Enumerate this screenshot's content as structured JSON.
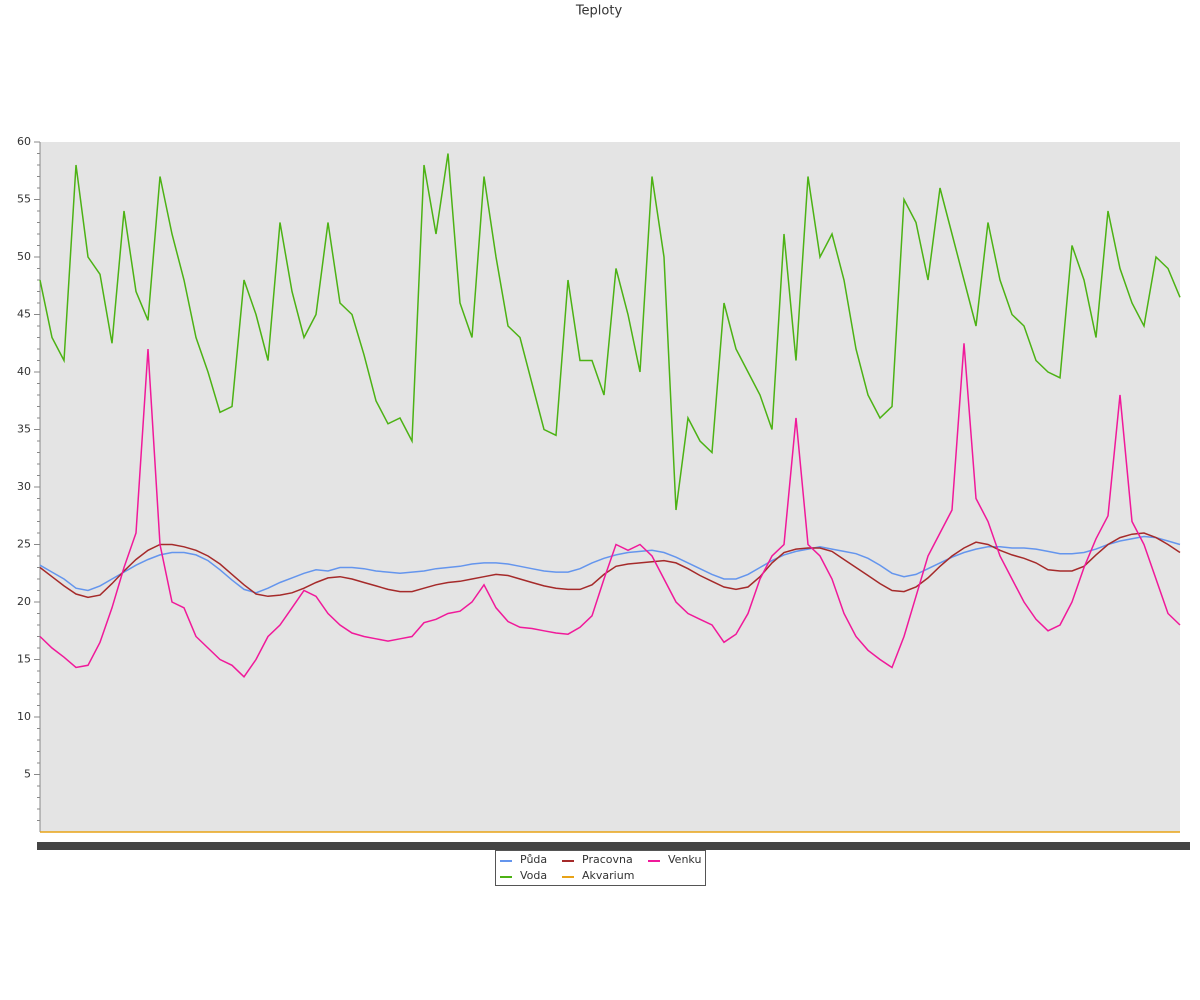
{
  "chart_data": {
    "type": "line",
    "title": "Teploty",
    "categories": [
      null,
      null,
      null,
      null,
      null,
      null,
      null,
      null,
      null,
      null,
      null,
      null,
      null,
      null,
      null,
      null,
      null,
      null,
      null,
      null,
      null,
      null,
      null,
      null,
      null,
      null,
      null,
      null,
      null,
      null,
      null,
      null,
      null,
      null,
      null,
      null,
      null,
      null,
      null,
      null,
      null,
      null,
      null,
      null,
      null,
      null,
      null,
      null,
      null,
      null,
      null,
      null,
      null,
      null,
      null,
      null,
      null,
      null,
      null,
      null,
      null,
      null,
      null,
      null,
      null,
      null,
      null,
      null,
      null,
      null,
      null,
      null,
      null,
      null,
      null,
      null,
      null,
      null,
      null,
      null,
      null,
      null,
      null,
      null,
      null,
      null,
      null,
      null,
      null,
      null,
      null,
      null,
      null,
      null,
      null,
      null
    ],
    "ylim": [
      0,
      60
    ],
    "yticks": [
      5,
      10,
      15,
      20,
      25,
      30,
      35,
      40,
      45,
      50,
      55,
      60
    ],
    "series": [
      {
        "name": "Půda",
        "color": "#6495ed",
        "values": [
          23.2,
          22.6,
          22,
          21.2,
          21,
          21.4,
          22,
          22.6,
          23.2,
          23.7,
          24.1,
          24.3,
          24.3,
          24.1,
          23.6,
          22.8,
          21.9,
          21.1,
          20.8,
          21.2,
          21.7,
          22.1,
          22.5,
          22.8,
          22.7,
          23,
          23,
          22.9,
          22.7,
          22.6,
          22.5,
          22.6,
          22.7,
          22.9,
          23,
          23.1,
          23.3,
          23.4,
          23.4,
          23.3,
          23.1,
          22.9,
          22.7,
          22.6,
          22.6,
          22.9,
          23.4,
          23.8,
          24.1,
          24.3,
          24.4,
          24.5,
          24.3,
          23.9,
          23.4,
          22.9,
          22.4,
          22,
          22,
          22.4,
          23,
          23.6,
          24.1,
          24.4,
          24.6,
          24.8,
          24.6,
          24.4,
          24.2,
          23.8,
          23.2,
          22.5,
          22.2,
          22.4,
          22.9,
          23.4,
          23.9,
          24.3,
          24.6,
          24.8,
          24.8,
          24.7,
          24.7,
          24.6,
          24.4,
          24.2,
          24.2,
          24.3,
          24.6,
          25,
          25.3,
          25.5,
          25.7,
          25.6,
          25.3,
          25
        ]
      },
      {
        "name": "Pracovna",
        "color": "#a52a2a",
        "values": [
          23,
          22.2,
          21.4,
          20.7,
          20.4,
          20.6,
          21.6,
          22.7,
          23.7,
          24.5,
          25,
          25,
          24.8,
          24.5,
          24,
          23.3,
          22.4,
          21.5,
          20.7,
          20.5,
          20.6,
          20.8,
          21.2,
          21.7,
          22.1,
          22.2,
          22,
          21.7,
          21.4,
          21.1,
          20.9,
          20.9,
          21.2,
          21.5,
          21.7,
          21.8,
          22,
          22.2,
          22.4,
          22.3,
          22,
          21.7,
          21.4,
          21.2,
          21.1,
          21.1,
          21.5,
          22.4,
          23.1,
          23.3,
          23.4,
          23.5,
          23.6,
          23.4,
          22.9,
          22.3,
          21.8,
          21.3,
          21.1,
          21.3,
          22.2,
          23.4,
          24.3,
          24.6,
          24.7,
          24.7,
          24.4,
          23.7,
          23,
          22.3,
          21.6,
          21,
          20.9,
          21.3,
          22.1,
          23.1,
          24,
          24.7,
          25.2,
          25,
          24.5,
          24.1,
          23.8,
          23.4,
          22.8,
          22.7,
          22.7,
          23.1,
          24.1,
          25,
          25.6,
          25.9,
          26,
          25.6,
          25,
          24.3
        ]
      },
      {
        "name": "Venku",
        "color": "#f0199a",
        "values": [
          17,
          16,
          15.2,
          14.3,
          14.5,
          16.5,
          19.5,
          23,
          26,
          42,
          25,
          20,
          19.5,
          17,
          16,
          15,
          14.5,
          13.5,
          15,
          17,
          18,
          19.5,
          21,
          20.5,
          19,
          18,
          17.3,
          17,
          16.8,
          16.6,
          16.8,
          17,
          18.2,
          18.5,
          19,
          19.2,
          20,
          21.5,
          19.5,
          18.3,
          17.8,
          17.7,
          17.5,
          17.3,
          17.2,
          17.8,
          18.8,
          22,
          25,
          24.5,
          25,
          24,
          22,
          20,
          19,
          18.5,
          18,
          16.5,
          17.2,
          19,
          22,
          24,
          25,
          36,
          25,
          24,
          22,
          19,
          17,
          15.8,
          15,
          14.3,
          17,
          20.5,
          24,
          26,
          28,
          42.5,
          29,
          27,
          24,
          22,
          20,
          18.5,
          17.5,
          18,
          20,
          23,
          25.5,
          27.5,
          38,
          27,
          25,
          22,
          19,
          18
        ]
      },
      {
        "name": "Voda",
        "color": "#4cb214",
        "values": [
          48,
          43,
          41,
          58,
          50,
          48.5,
          42.5,
          54,
          47,
          44.5,
          57,
          52,
          48,
          43,
          40,
          36.5,
          37,
          48,
          45,
          41,
          53,
          47,
          43,
          45,
          53,
          46,
          45,
          41.5,
          37.5,
          35.5,
          36,
          34,
          58,
          52,
          59,
          46,
          43,
          57,
          50,
          44,
          43,
          39,
          35,
          34.5,
          48,
          41,
          41,
          38,
          49,
          45,
          40,
          57,
          50,
          28,
          36,
          34,
          33,
          46,
          42,
          40,
          38,
          35,
          52,
          41,
          57,
          50,
          52,
          48,
          42,
          38,
          36,
          37,
          55,
          53,
          48,
          56,
          52,
          48,
          44,
          53,
          48,
          45,
          44,
          41,
          40,
          39.5,
          51,
          48,
          43,
          54,
          49,
          46,
          44,
          50,
          49,
          46.5
        ]
      },
      {
        "name": "Akvarium",
        "color": "#e8a317",
        "values": [
          0,
          0,
          0,
          0,
          0,
          0,
          0,
          0,
          0,
          0,
          0,
          0,
          0,
          0,
          0,
          0,
          0,
          0,
          0,
          0,
          0,
          0,
          0,
          0,
          0,
          0,
          0,
          0,
          0,
          0,
          0,
          0,
          0,
          0,
          0,
          0,
          0,
          0,
          0,
          0,
          0,
          0,
          0,
          0,
          0,
          0,
          0,
          0,
          0,
          0,
          0,
          0,
          0,
          0,
          0,
          0,
          0,
          0,
          0,
          0,
          0,
          0,
          0,
          0,
          0,
          0,
          0,
          0,
          0,
          0,
          0,
          0,
          0,
          0,
          0,
          0,
          0,
          0,
          0,
          0,
          0,
          0,
          0,
          0,
          0,
          0,
          0,
          0,
          0,
          0,
          0,
          0,
          0,
          0,
          0,
          0
        ]
      }
    ]
  }
}
